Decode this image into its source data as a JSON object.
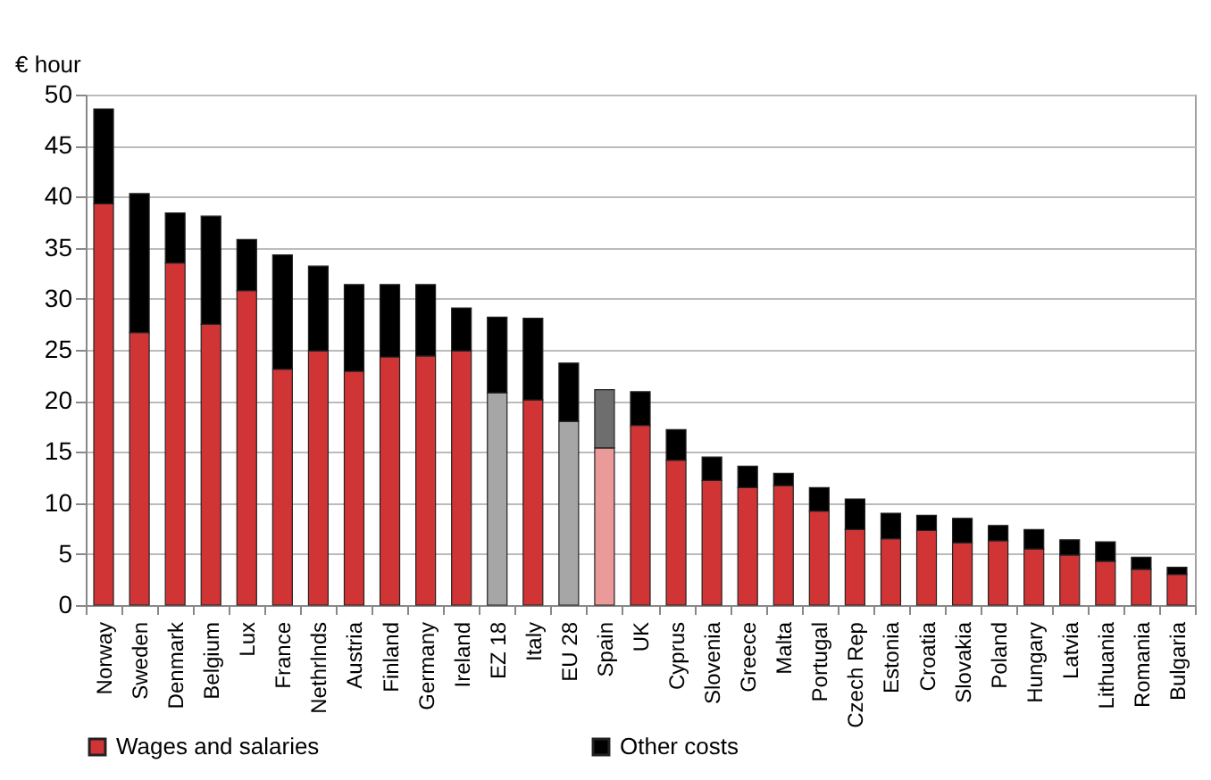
{
  "chart_data": {
    "type": "bar",
    "stacked": true,
    "ylabel": "€ hour",
    "categories": [
      "Norway",
      "Sweden",
      "Denmark",
      "Belgium",
      "Lux",
      "France",
      "Nethrlnds",
      "Austria",
      "Finland",
      "Germany",
      "Ireland",
      "EZ 18",
      "Italy",
      "EU 28",
      "Spain",
      "UK",
      "Cyprus",
      "Slovenia",
      "Greece",
      "Malta",
      "Portugal",
      "Czech Rep",
      "Estonia",
      "Croatia",
      "Slovakia",
      "Poland",
      "Hungary",
      "Latvia",
      "Lithuania",
      "Romania",
      "Bulgaria"
    ],
    "series": [
      {
        "name": "Wages and salaries",
        "color": "#d13434",
        "colors": [
          "#d13434",
          "#d13434",
          "#d13434",
          "#d13434",
          "#d13434",
          "#d13434",
          "#d13434",
          "#d13434",
          "#d13434",
          "#d13434",
          "#d13434",
          "#a6a6a6",
          "#d13434",
          "#a6a6a6",
          "#eb9a9a",
          "#d13434",
          "#d13434",
          "#d13434",
          "#d13434",
          "#d13434",
          "#d13434",
          "#d13434",
          "#d13434",
          "#d13434",
          "#d13434",
          "#d13434",
          "#d13434",
          "#d13434",
          "#d13434",
          "#d13434",
          "#d13434"
        ],
        "values": [
          39.3,
          26.7,
          33.5,
          27.5,
          30.8,
          23.1,
          24.9,
          22.9,
          24.3,
          24.4,
          24.9,
          20.8,
          20.1,
          18.0,
          15.4,
          17.6,
          14.2,
          12.2,
          11.5,
          11.7,
          9.2,
          7.4,
          6.5,
          7.3,
          6.1,
          6.3,
          5.5,
          4.9,
          4.3,
          3.5,
          3.0
        ]
      },
      {
        "name": "Other costs",
        "color": "#000000",
        "colors": [
          "#000000",
          "#000000",
          "#000000",
          "#000000",
          "#000000",
          "#000000",
          "#000000",
          "#000000",
          "#000000",
          "#000000",
          "#000000",
          "#000000",
          "#000000",
          "#000000",
          "#6e6e6e",
          "#000000",
          "#000000",
          "#000000",
          "#000000",
          "#000000",
          "#000000",
          "#000000",
          "#000000",
          "#000000",
          "#000000",
          "#000000",
          "#000000",
          "#000000",
          "#000000",
          "#000000",
          "#000000"
        ],
        "values": [
          9.3,
          13.6,
          4.9,
          10.6,
          5.0,
          11.2,
          8.3,
          8.5,
          7.1,
          7.0,
          4.2,
          7.4,
          8.0,
          5.7,
          5.7,
          3.3,
          3.0,
          2.3,
          2.1,
          1.2,
          2.3,
          3.0,
          2.5,
          1.5,
          2.4,
          1.5,
          1.9,
          1.5,
          1.9,
          1.2,
          0.7
        ]
      }
    ],
    "ylim": [
      0,
      50
    ],
    "yticks": [
      0,
      5,
      10,
      15,
      20,
      25,
      30,
      35,
      40,
      45,
      50
    ],
    "grid": "y",
    "legend": "bottom"
  }
}
